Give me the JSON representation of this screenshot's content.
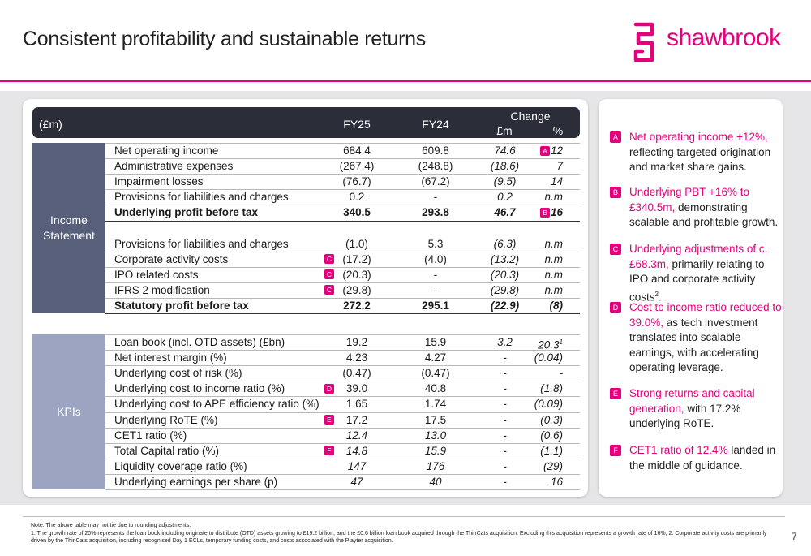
{
  "header": {
    "title": "Consistent profitability and sustainable returns",
    "logo": "shawbrook"
  },
  "table": {
    "columns": [
      "(£m)",
      "FY25",
      "FY24"
    ],
    "change_header": "Change",
    "change_columns": [
      "£m",
      "%"
    ],
    "sections": [
      {
        "label": "Income Statement",
        "groups": [
          [
            {
              "label": "Net operating income",
              "cells": [
                "684.4",
                "609.8",
                "74.6",
                "12"
              ],
              "badge": "A",
              "badge_cell": 3
            },
            {
              "label": "Administrative expenses",
              "cells": [
                "(267.4)",
                "(248.8)",
                "(18.6)",
                "7"
              ]
            },
            {
              "label": "Impairment losses",
              "cells": [
                "(76.7)",
                "(67.2)",
                "(9.5)",
                "14"
              ]
            },
            {
              "label": "Provisions for liabilities and charges",
              "cells": [
                "0.2",
                "-",
                "0.2",
                "n.m"
              ]
            },
            {
              "label": "Underlying profit before tax",
              "cells": [
                "340.5",
                "293.8",
                "46.7",
                "16"
              ],
              "bold": true,
              "badge": "B",
              "badge_cell": 3
            }
          ],
          [
            {
              "label": "Provisions for liabilities and charges",
              "cells": [
                "(1.0)",
                "5.3",
                "(6.3)",
                "n.m"
              ]
            },
            {
              "label": "Corporate activity costs",
              "cells": [
                "(17.2)",
                "(4.0)",
                "(13.2)",
                "n.m"
              ],
              "badge": "C",
              "badge_cell": 0
            },
            {
              "label": "IPO related costs",
              "cells": [
                "(20.3)",
                "-",
                "(20.3)",
                "n.m"
              ],
              "badge": "C",
              "badge_cell": 0
            },
            {
              "label": "IFRS 2 modification",
              "cells": [
                "(29.8)",
                "-",
                "(29.8)",
                "n.m"
              ],
              "badge": "C",
              "badge_cell": 0
            },
            {
              "label": "Statutory profit before tax",
              "cells": [
                "272.2",
                "295.1",
                "(22.9)",
                "(8)"
              ],
              "bold": true
            }
          ]
        ]
      },
      {
        "label": "KPIs",
        "groups": [
          [
            {
              "label": "Loan book (incl. OTD assets) (£bn)",
              "cells": [
                "19.2",
                "15.9",
                "3.2",
                "20.3"
              ],
              "note": "1"
            },
            {
              "label": "Net interest margin (%)",
              "cells": [
                "4.23",
                "4.27",
                "-",
                "(0.04)"
              ]
            },
            {
              "label": "Underlying cost of risk (%)",
              "cells": [
                "(0.47)",
                "(0.47)",
                "-",
                "-"
              ]
            },
            {
              "label": "Underlying cost to income ratio (%)",
              "cells": [
                "39.0",
                "40.8",
                "-",
                "(1.8)"
              ],
              "badge": "D",
              "badge_cell": 0
            },
            {
              "label": "Underlying cost to APE efficiency ratio (%)",
              "cells": [
                "1.65",
                "1.74",
                "-",
                "(0.09)"
              ]
            },
            {
              "label": "Underlying RoTE (%)",
              "cells": [
                "17.2",
                "17.5",
                "-",
                "(0.3)"
              ],
              "badge": "E",
              "badge_cell": 0
            },
            {
              "label": "CET1 ratio (%)",
              "cells": [
                "12.4",
                "13.0",
                "-",
                "(0.6)"
              ],
              "italic": true
            },
            {
              "label": "Total Capital ratio (%)",
              "cells": [
                "14.8",
                "15.9",
                "-",
                "(1.1)"
              ],
              "italic": true,
              "badge": "F",
              "badge_cell": 0
            },
            {
              "label": "Liquidity coverage ratio (%)",
              "cells": [
                "147",
                "176",
                "-",
                "(29)"
              ],
              "italic": true
            },
            {
              "label": "Underlying earnings per share (p)",
              "cells": [
                "47",
                "40",
                "-",
                "16"
              ],
              "italic": true
            }
          ]
        ]
      }
    ]
  },
  "callouts": [
    {
      "letter": "A",
      "parts": [
        {
          "text": "Net operating income +12%,",
          "pink": true
        },
        {
          "text": " reflecting targeted origination and market share gains."
        }
      ]
    },
    {
      "letter": "B",
      "parts": [
        {
          "text": "Underlying PBT +16% to £340.5m,",
          "pink": true
        },
        {
          "text": " demonstrating scalable and profitable growth."
        }
      ]
    },
    {
      "letter": "C",
      "parts": [
        {
          "text": "Underlying adjustments of c.£68.3m,",
          "pink": true
        },
        {
          "text": " primarily relating to IPO and corporate activity costs"
        },
        {
          "text": "2",
          "sup": true
        },
        {
          "text": "."
        }
      ]
    },
    {
      "letter": "D",
      "parts": [
        {
          "text": "Cost to income ratio reduced to 39.0%,",
          "pink": true
        },
        {
          "text": " as tech investment translates into scalable earnings, with accelerating operating leverage."
        }
      ]
    },
    {
      "letter": "E",
      "parts": [
        {
          "text": "Strong returns and capital generation,",
          "pink": true
        },
        {
          "text": " with 17.2% underlying RoTE."
        }
      ]
    },
    {
      "letter": "F",
      "parts": [
        {
          "text": "CET1 ratio of 12.4%",
          "pink": true
        },
        {
          "text": " landed in the middle of guidance."
        }
      ]
    }
  ],
  "footer": {
    "notes": [
      "Note: The above table may not tie due to rounding adjustments.",
      "1. The growth rate of 20% represents the loan book including originate to distribute (OTD) assets growing to £19.2 billion, and the £0.6 billion loan book acquired through the ThinCats acquisition. Excluding this acquisition represents a growth rate of 16%; 2. Corporate activity costs are primarily driven by the ThinCats acquisition, including recognised Day 1 ECLs, temporary funding costs, and costs associated with the Playter acquisition."
    ],
    "page": "7"
  }
}
